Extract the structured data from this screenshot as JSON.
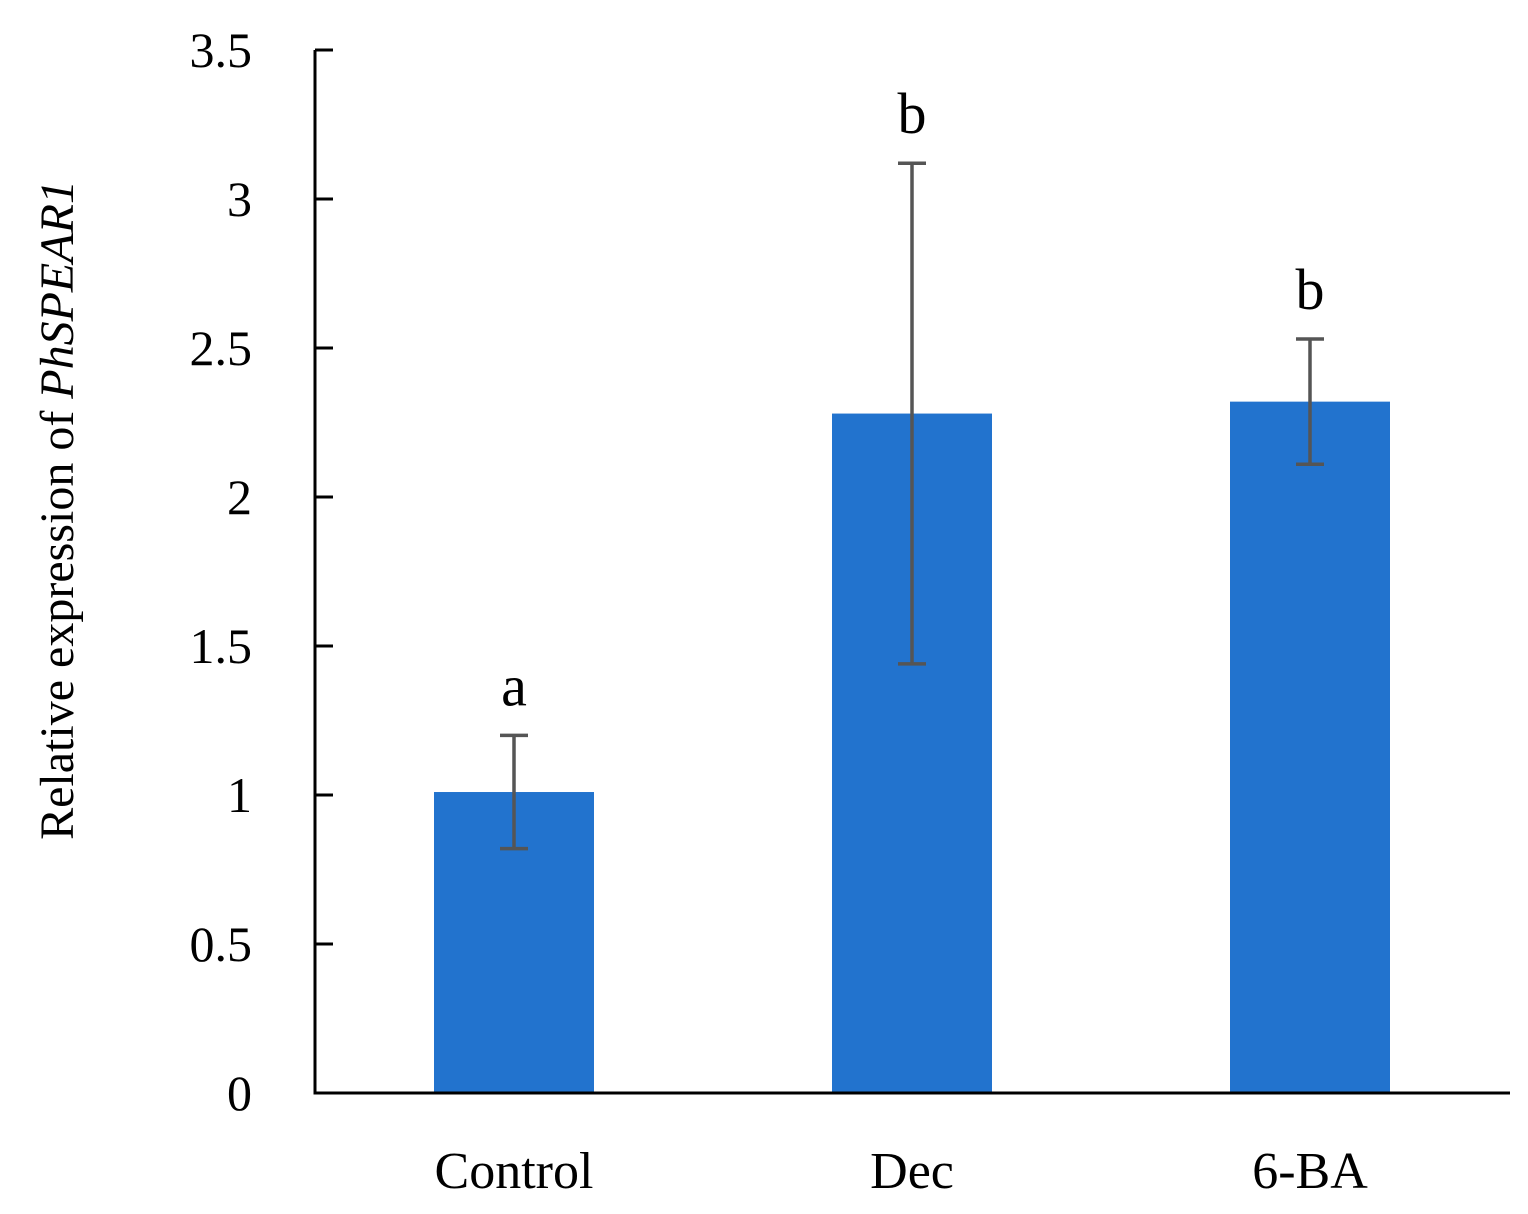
{
  "chart_data": {
    "type": "bar",
    "categories": [
      "Control",
      "Dec",
      "6-BA"
    ],
    "values": [
      1.01,
      2.28,
      2.32
    ],
    "error": [
      0.19,
      0.84,
      0.21
    ],
    "significance": [
      "a",
      "b",
      "b"
    ],
    "title": "",
    "xlabel": "",
    "ylabel": {
      "prefix": "Relative expression of ",
      "gene": "PhSPEAR1"
    },
    "ylim": [
      0,
      3.5
    ],
    "yticks": [
      "0",
      "0.5",
      "1",
      "1.5",
      "2",
      "2.5",
      "3",
      "3.5"
    ],
    "ytick_values": [
      0,
      0.5,
      1,
      1.5,
      2,
      2.5,
      3,
      3.5
    ],
    "grid": false,
    "colors": {
      "bar": "#2273CE",
      "error_bar": "#555555",
      "axis": "#000000"
    }
  }
}
